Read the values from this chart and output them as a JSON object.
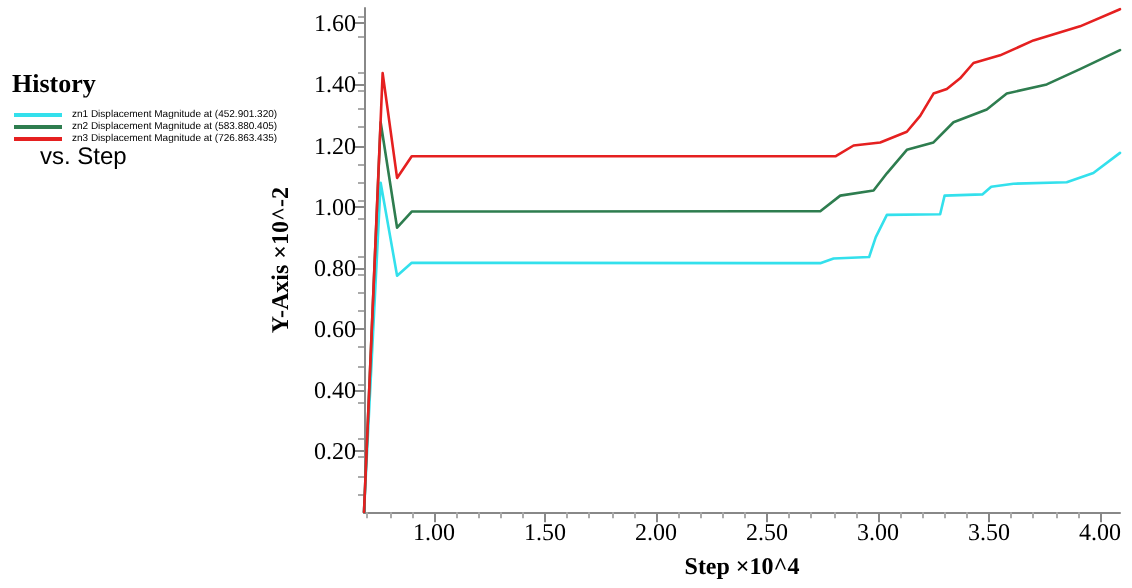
{
  "chart_data": {
    "type": "line",
    "legend_title": "History",
    "annotations": [
      "vs. Step"
    ],
    "xlabel": "Step ×10^4",
    "ylabel": "Y-Axis ×10^-2",
    "legend": "left",
    "grid": false,
    "marker": "none",
    "line_style": "solid",
    "xlim": [
      0.685,
      4.09
    ],
    "ylim": [
      0,
      1.65
    ],
    "xticks": [
      {
        "value": 1,
        "label": "1.00"
      },
      {
        "value": 1.5,
        "label": "1.50"
      },
      {
        "value": 2,
        "label": "2.00"
      },
      {
        "value": 2.5,
        "label": "2.50"
      },
      {
        "value": 3,
        "label": "3.00"
      },
      {
        "value": 3.5,
        "label": "3.50"
      },
      {
        "value": 4,
        "label": "4.00"
      }
    ],
    "yticks": [
      {
        "value": 0.2,
        "label": "0.20"
      },
      {
        "value": 0.4,
        "label": "0.40"
      },
      {
        "value": 0.6,
        "label": "0.60"
      },
      {
        "value": 0.8,
        "label": "0.80"
      },
      {
        "value": 1,
        "label": "1.00"
      },
      {
        "value": 1.2,
        "label": "1.20"
      },
      {
        "value": 1.4,
        "label": "1.40"
      },
      {
        "value": 1.6,
        "label": "1.60"
      }
    ],
    "series": [
      {
        "name": "zn1 Displacement Magnitude at (452.901.320)",
        "color": "#33e0ec",
        "x": [
          0.685,
          0.76,
          0.834,
          0.9,
          2.74,
          2.8,
          2.96,
          2.99,
          3.04,
          3.28,
          3.3,
          3.47,
          3.51,
          3.61,
          3.85,
          3.97,
          4.09
        ],
        "values": [
          0,
          1.078,
          0.774,
          0.816,
          0.815,
          0.83,
          0.835,
          0.9,
          0.973,
          0.975,
          1.036,
          1.04,
          1.065,
          1.075,
          1.08,
          1.11,
          1.176
        ]
      },
      {
        "name": "zn2 Displacement Magnitude at (583.880.405)",
        "color": "#2e7d4f",
        "x": [
          0.685,
          0.76,
          0.834,
          0.9,
          2.74,
          2.83,
          2.98,
          3.04,
          3.13,
          3.25,
          3.34,
          3.49,
          3.58,
          3.76,
          3.91,
          4.09
        ],
        "values": [
          0,
          1.276,
          0.931,
          0.984,
          0.985,
          1.036,
          1.053,
          1.109,
          1.186,
          1.21,
          1.276,
          1.318,
          1.37,
          1.4,
          1.45,
          1.512
        ]
      },
      {
        "name": "zn3 Displacement Magnitude at (726.863.435)",
        "color": "#e52020",
        "x": [
          0.685,
          0.769,
          0.834,
          0.9,
          2.81,
          2.89,
          3.01,
          3.13,
          3.19,
          3.25,
          3.31,
          3.37,
          3.43,
          3.55,
          3.7,
          3.91,
          4.09
        ],
        "values": [
          0,
          1.437,
          1.094,
          1.165,
          1.165,
          1.2,
          1.21,
          1.245,
          1.297,
          1.37,
          1.385,
          1.42,
          1.47,
          1.495,
          1.544,
          1.59,
          1.646
        ]
      }
    ]
  }
}
